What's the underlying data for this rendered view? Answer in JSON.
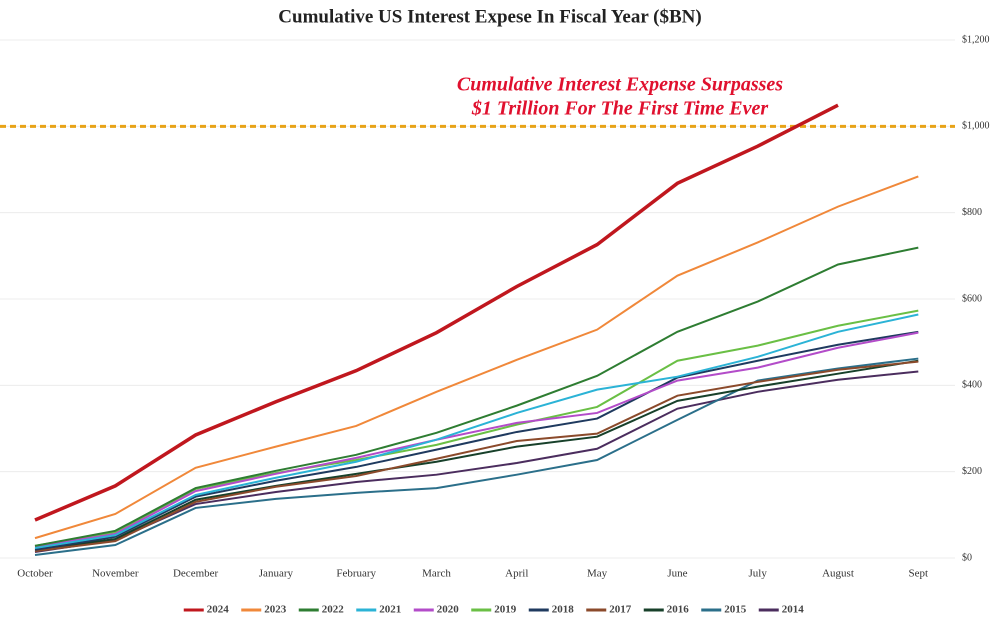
{
  "chart_data": {
    "type": "line",
    "title": "Cumulative US Interest Expese In Fiscal Year ($BN)",
    "annotation": [
      "Cumulative Interest Expense Surpasses",
      "$1 Trillion For The First Time Ever"
    ],
    "reference_line": {
      "value": 1000,
      "color": "#e8a317"
    },
    "categories": [
      "October",
      "November",
      "December",
      "January",
      "February",
      "March",
      "April",
      "May",
      "June",
      "July",
      "August",
      "Sept"
    ],
    "ylim": [
      0,
      1200
    ],
    "yticks": [
      {
        "value": 0,
        "label": "$0"
      },
      {
        "value": 200,
        "label": "$200"
      },
      {
        "value": 400,
        "label": "$400"
      },
      {
        "value": 600,
        "label": "$600"
      },
      {
        "value": 800,
        "label": "$800"
      },
      {
        "value": 1000,
        "label": "$1,000"
      },
      {
        "value": 1200,
        "label": "$1,200"
      }
    ],
    "grid": true,
    "legend": "bottom",
    "series": [
      {
        "name": "2024",
        "color": "#c0171e",
        "values": [
          88,
          167,
          285,
          362,
          434,
          522,
          629,
          726,
          868,
          954,
          1049,
          null
        ]
      },
      {
        "name": "2023",
        "color": "#f0883a",
        "values": [
          46,
          102,
          209,
          258,
          306,
          385,
          459,
          529,
          654,
          731,
          814,
          884
        ]
      },
      {
        "name": "2022",
        "color": "#2e7d32",
        "values": [
          28,
          63,
          162,
          202,
          239,
          290,
          353,
          422,
          524,
          594,
          680,
          719
        ]
      },
      {
        "name": "2021",
        "color": "#2bb3d6",
        "values": [
          23,
          53,
          146,
          186,
          223,
          274,
          336,
          390,
          420,
          466,
          524,
          564
        ]
      },
      {
        "name": "2020",
        "color": "#b34cc9",
        "values": [
          26,
          56,
          155,
          195,
          232,
          274,
          313,
          336,
          411,
          441,
          487,
          522
        ]
      },
      {
        "name": "2019",
        "color": "#6abf45",
        "values": [
          28,
          60,
          160,
          197,
          227,
          262,
          309,
          350,
          457,
          492,
          538,
          573
        ]
      },
      {
        "name": "2018",
        "color": "#1f3a5f",
        "values": [
          19,
          49,
          142,
          179,
          211,
          251,
          292,
          323,
          418,
          457,
          494,
          524
        ]
      },
      {
        "name": "2017",
        "color": "#8b4a2b",
        "values": [
          16,
          39,
          130,
          165,
          190,
          230,
          271,
          288,
          376,
          408,
          436,
          455
        ]
      },
      {
        "name": "2016",
        "color": "#17402a",
        "values": [
          19,
          44,
          135,
          167,
          195,
          223,
          258,
          281,
          364,
          397,
          427,
          457
        ]
      },
      {
        "name": "2015",
        "color": "#2b6f8a",
        "values": [
          7,
          30,
          116,
          137,
          151,
          162,
          193,
          227,
          320,
          411,
          439,
          462
        ]
      },
      {
        "name": "2014",
        "color": "#4b2d5e",
        "values": [
          14,
          42,
          125,
          153,
          176,
          193,
          220,
          253,
          346,
          385,
          413,
          432
        ]
      }
    ]
  }
}
